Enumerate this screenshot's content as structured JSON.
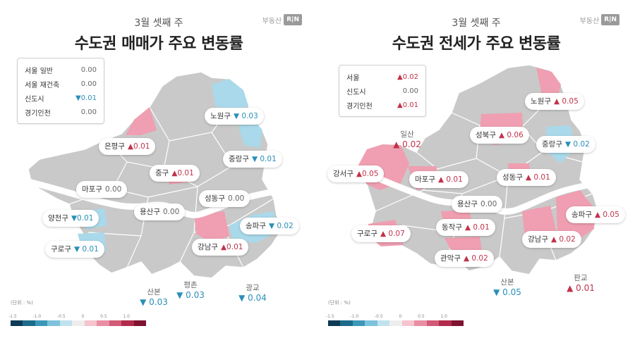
{
  "left": {
    "subtitle": "3월 셋째 주",
    "title": "수도권 매매가 주요 변동률",
    "brand": "부동산",
    "brand_mark": "R|N",
    "summary": [
      {
        "name": "서울 일반",
        "value": "0.00",
        "dir": "zero"
      },
      {
        "name": "서울 재건축",
        "value": "0.00",
        "dir": "zero"
      },
      {
        "name": "신도시",
        "value": "▼0.01",
        "dir": "down"
      },
      {
        "name": "경기인천",
        "value": "0.00",
        "dir": "zero"
      }
    ],
    "districts": [
      {
        "name": "노원구",
        "value": "▼ 0.03",
        "dir": "down"
      },
      {
        "name": "은평구",
        "value": "▲0.01",
        "dir": "up"
      },
      {
        "name": "중랑구",
        "value": "▼ 0.01",
        "dir": "down"
      },
      {
        "name": "중구",
        "value": "▲0.01",
        "dir": "up"
      },
      {
        "name": "마포구",
        "value": "0.00",
        "dir": "zero"
      },
      {
        "name": "성동구",
        "value": "0.00",
        "dir": "zero"
      },
      {
        "name": "양천구",
        "value": "▼0.01",
        "dir": "down"
      },
      {
        "name": "용산구",
        "value": "0.00",
        "dir": "zero"
      },
      {
        "name": "송파구",
        "value": "▼ 0.02",
        "dir": "down"
      },
      {
        "name": "강남구",
        "value": "▲0.01",
        "dir": "up"
      },
      {
        "name": "구로구",
        "value": "▼ 0.01",
        "dir": "down"
      }
    ],
    "outer": [
      {
        "name": "산본",
        "value": "▼ 0.03",
        "dir": "down"
      },
      {
        "name": "평촌",
        "value": "▼ 0.03",
        "dir": "down"
      },
      {
        "name": "광교",
        "value": "▼ 0.04",
        "dir": "down"
      }
    ],
    "unit": "(단위 : %)",
    "legend_ticks": [
      "-1.5",
      "-1.0",
      "-0.5",
      "0",
      "0.5",
      "1.0"
    ]
  },
  "right": {
    "subtitle": "3월 셋째 주",
    "title": "수도권 전세가 주요 변동률",
    "brand": "부동산",
    "brand_mark": "R|N",
    "summary": [
      {
        "name": "서울",
        "value": "▲0.02",
        "dir": "up"
      },
      {
        "name": "신도시",
        "value": "0.00",
        "dir": "zero"
      },
      {
        "name": "경기인천",
        "value": "▲0.01",
        "dir": "up"
      }
    ],
    "districts": [
      {
        "name": "노원구",
        "value": "▲ 0.05",
        "dir": "up"
      },
      {
        "name": "성북구",
        "value": "▲ 0.06",
        "dir": "up"
      },
      {
        "name": "중랑구",
        "value": "▼ 0.02",
        "dir": "down"
      },
      {
        "name": "강서구",
        "value": "▲0.05",
        "dir": "up"
      },
      {
        "name": "마포구",
        "value": "▲ 0.01",
        "dir": "up"
      },
      {
        "name": "성동구",
        "value": "▲ 0.01",
        "dir": "up"
      },
      {
        "name": "용산구",
        "value": "0.00",
        "dir": "zero"
      },
      {
        "name": "송파구",
        "value": "▲ 0.05",
        "dir": "up"
      },
      {
        "name": "구로구",
        "value": "▲ 0.07",
        "dir": "up"
      },
      {
        "name": "동작구",
        "value": "▲ 0.01",
        "dir": "up"
      },
      {
        "name": "강남구",
        "value": "▲ 0.02",
        "dir": "up"
      },
      {
        "name": "관악구",
        "value": "▲ 0.02",
        "dir": "up"
      }
    ],
    "outer": [
      {
        "name": "일산",
        "value": "▲ 0.02",
        "dir": "up"
      },
      {
        "name": "산본",
        "value": "▼ 0.05",
        "dir": "down"
      },
      {
        "name": "판교",
        "value": "▲ 0.01",
        "dir": "up"
      }
    ],
    "unit": "(단위 : %)",
    "legend_ticks": [
      "-1.5",
      "-1.0",
      "-0.5",
      "0",
      "0.5",
      "1.0"
    ]
  },
  "colors": {
    "base": "#c9c9c9",
    "up": "#ef9fb1",
    "down": "#a9d9ea",
    "river": "#ffffff",
    "legend": [
      "#0e3a55",
      "#1d6b8a",
      "#3c97b8",
      "#7cc2da",
      "#bfe2ee",
      "#eeeeee",
      "#f5c4cf",
      "#e98ea3",
      "#d25a76",
      "#b02b4c",
      "#7e1330"
    ]
  }
}
